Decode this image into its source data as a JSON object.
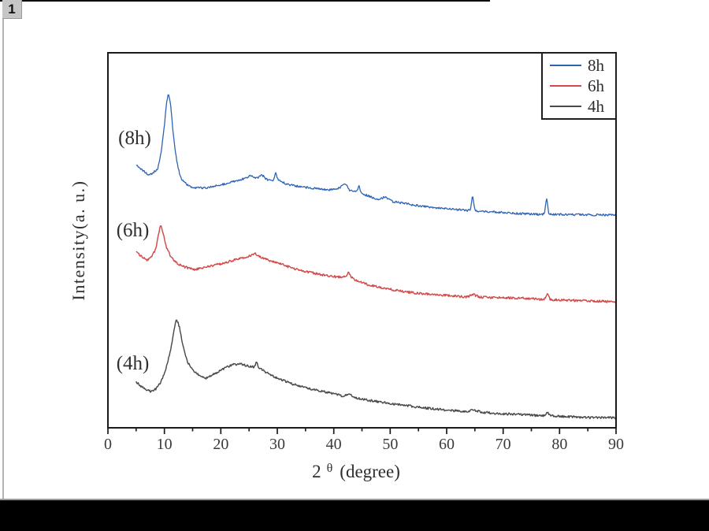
{
  "page": {
    "badge_label": "1"
  },
  "chart_data": {
    "type": "line",
    "title": "",
    "xlabel": {
      "prefix": "2",
      "theta": "θ",
      "suffix": "(degree)"
    },
    "ylabel": "Intensity(a. u.)",
    "xlim": [
      0,
      90
    ],
    "ylim": [
      0,
      100
    ],
    "x_major_ticks": [
      0,
      10,
      20,
      30,
      40,
      50,
      60,
      70,
      80,
      90
    ],
    "x_minor_ticks": [
      5,
      15,
      25,
      35,
      45,
      55,
      65,
      75,
      85
    ],
    "grid": false,
    "axis_color": "#1a1a1a",
    "text_color": "#2e2e2e",
    "legend": {
      "position": "top-right"
    },
    "series": [
      {
        "name": "8h",
        "color": "#2f63b4",
        "stroke_width": 1.3,
        "noise": 0.28,
        "annotation": {
          "text": "(8h)",
          "x": 4.74,
          "v": 77.1
        },
        "points": [
          [
            5,
            70.2
          ],
          [
            6,
            68.9
          ],
          [
            7,
            67.6
          ],
          [
            7.8,
            67.8
          ],
          [
            8.8,
            68.9
          ],
          [
            9.5,
            74.2
          ],
          [
            10,
            80.5
          ],
          [
            10.4,
            86.8
          ],
          [
            10.7,
            89.5
          ],
          [
            11.1,
            86.3
          ],
          [
            11.5,
            79.4
          ],
          [
            12,
            72.9
          ],
          [
            12.5,
            68.9
          ],
          [
            13,
            66.2
          ],
          [
            14,
            64.9
          ],
          [
            15,
            64.1
          ],
          [
            17,
            63.9
          ],
          [
            19,
            64.5
          ],
          [
            21,
            65.1
          ],
          [
            23,
            66
          ],
          [
            24.5,
            66.6
          ],
          [
            25.5,
            67.4
          ],
          [
            26.2,
            66.4
          ],
          [
            27.3,
            67.4
          ],
          [
            28.3,
            66
          ],
          [
            29.4,
            66
          ],
          [
            29.7,
            68.5
          ],
          [
            30.1,
            66.1
          ],
          [
            31.5,
            65.1
          ],
          [
            33,
            64.5
          ],
          [
            36,
            63.9
          ],
          [
            39,
            63.4
          ],
          [
            41,
            63.9
          ],
          [
            42.1,
            65.3
          ],
          [
            42.8,
            63.3
          ],
          [
            43.5,
            63
          ],
          [
            44.15,
            63
          ],
          [
            44.5,
            64.7
          ],
          [
            44.85,
            62.6
          ],
          [
            45.5,
            62.2
          ],
          [
            46.5,
            61.6
          ],
          [
            48,
            60.9
          ],
          [
            49.1,
            61.6
          ],
          [
            50.5,
            60.3
          ],
          [
            53,
            59.7
          ],
          [
            56,
            59
          ],
          [
            60,
            58.4
          ],
          [
            63.5,
            58
          ],
          [
            64.25,
            58
          ],
          [
            64.6,
            62.6
          ],
          [
            64.95,
            57.9
          ],
          [
            67,
            57.7
          ],
          [
            70,
            57.4
          ],
          [
            73,
            57.1
          ],
          [
            76.8,
            56.9
          ],
          [
            77.35,
            57
          ],
          [
            77.7,
            62.2
          ],
          [
            78.05,
            56.9
          ],
          [
            80,
            56.9
          ],
          [
            85,
            56.8
          ],
          [
            90,
            56.7
          ]
        ]
      },
      {
        "name": "6h",
        "color": "#d24a49",
        "stroke_width": 1.45,
        "noise": 0.3,
        "annotation": {
          "text": "(6h)",
          "x": 4.4,
          "v": 52.5
        },
        "points": [
          [
            5,
            46.8
          ],
          [
            6.2,
            45.4
          ],
          [
            7,
            44.7
          ],
          [
            7.8,
            45.6
          ],
          [
            8.5,
            47.9
          ],
          [
            9,
            51.7
          ],
          [
            9.35,
            54.2
          ],
          [
            9.8,
            51.7
          ],
          [
            10.4,
            47.9
          ],
          [
            11.2,
            45.4
          ],
          [
            12.2,
            43.9
          ],
          [
            13.5,
            42.9
          ],
          [
            15.5,
            42.2
          ],
          [
            18,
            43.1
          ],
          [
            20.5,
            43.9
          ],
          [
            23,
            45
          ],
          [
            25,
            45.8
          ],
          [
            26.2,
            46.4
          ],
          [
            27,
            45.6
          ],
          [
            28.5,
            44.7
          ],
          [
            30.5,
            43.7
          ],
          [
            33,
            42.4
          ],
          [
            36,
            41.4
          ],
          [
            39,
            40.5
          ],
          [
            41.5,
            40.1
          ],
          [
            42.1,
            40.3
          ],
          [
            42.6,
            41.6
          ],
          [
            43.2,
            40
          ],
          [
            44,
            39.3
          ],
          [
            46,
            38.2
          ],
          [
            49,
            37.2
          ],
          [
            52.5,
            36.3
          ],
          [
            56,
            35.7
          ],
          [
            60,
            35.3
          ],
          [
            63.5,
            34.9
          ],
          [
            64.8,
            35.5
          ],
          [
            66,
            34.8
          ],
          [
            70,
            34.7
          ],
          [
            74.5,
            34.5
          ],
          [
            77,
            34.2
          ],
          [
            77.4,
            34.3
          ],
          [
            77.8,
            35.9
          ],
          [
            78.3,
            34.2
          ],
          [
            82,
            34
          ],
          [
            86,
            33.8
          ],
          [
            90,
            33.6
          ]
        ]
      },
      {
        "name": "4h",
        "color": "#4a4a4a",
        "stroke_width": 1.45,
        "noise": 0.3,
        "annotation": {
          "text": "(4h)",
          "x": 4.4,
          "v": 17.0
        },
        "points": [
          [
            5,
            12.2
          ],
          [
            6.3,
            10.5
          ],
          [
            7.5,
            9.7
          ],
          [
            8.5,
            10.3
          ],
          [
            9.5,
            12.6
          ],
          [
            10.3,
            15.8
          ],
          [
            11,
            20
          ],
          [
            11.6,
            24.8
          ],
          [
            12.1,
            29.4
          ],
          [
            12.7,
            26.7
          ],
          [
            13.3,
            21.8
          ],
          [
            14.1,
            17.6
          ],
          [
            15,
            15.3
          ],
          [
            16.2,
            13.9
          ],
          [
            17.5,
            13.2
          ],
          [
            19,
            14.5
          ],
          [
            20.5,
            15.8
          ],
          [
            22,
            16.8
          ],
          [
            23.5,
            17
          ],
          [
            25,
            16.4
          ],
          [
            26,
            16.2
          ],
          [
            26.3,
            17.6
          ],
          [
            26.7,
            16
          ],
          [
            28,
            14.8
          ],
          [
            30,
            13.2
          ],
          [
            32.5,
            11.8
          ],
          [
            35,
            10.7
          ],
          [
            38,
            9.7
          ],
          [
            40.5,
            9
          ],
          [
            41.5,
            8.4
          ],
          [
            42.7,
            9
          ],
          [
            44,
            8
          ],
          [
            46,
            7.4
          ],
          [
            49,
            6.7
          ],
          [
            52,
            6.1
          ],
          [
            55,
            5.5
          ],
          [
            58,
            5
          ],
          [
            61,
            4.6
          ],
          [
            63.5,
            4.3
          ],
          [
            64.8,
            4.8
          ],
          [
            66,
            4.2
          ],
          [
            69,
            3.8
          ],
          [
            72,
            3.6
          ],
          [
            75,
            3.4
          ],
          [
            76.8,
            3.2
          ],
          [
            77.4,
            3.3
          ],
          [
            77.8,
            4.4
          ],
          [
            78.3,
            3.2
          ],
          [
            82,
            2.9
          ],
          [
            86,
            2.7
          ],
          [
            90,
            2.7
          ]
        ]
      }
    ]
  }
}
